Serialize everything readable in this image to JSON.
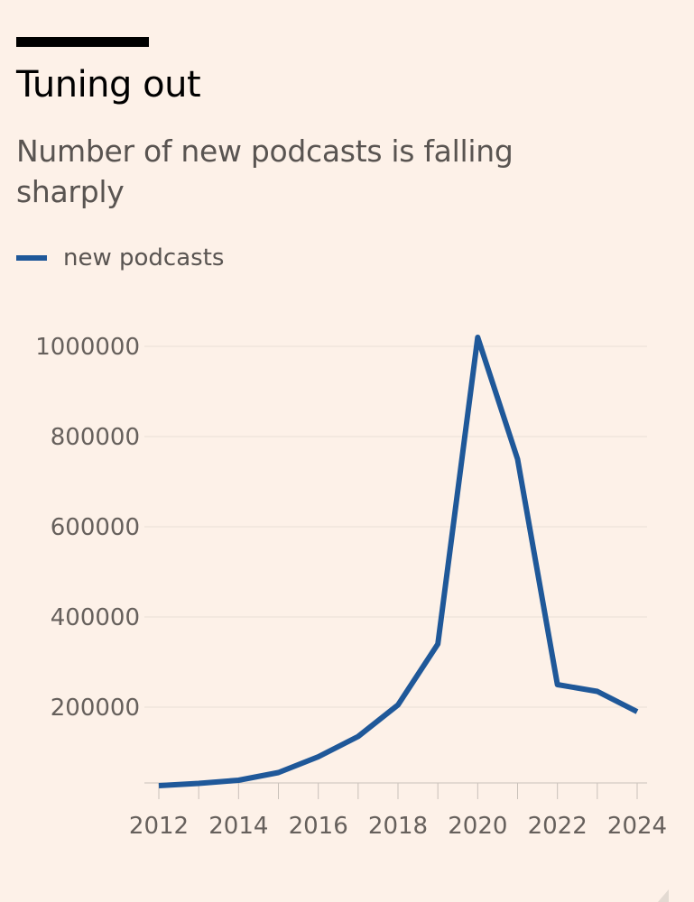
{
  "header": {
    "title": "Tuning out",
    "subtitle": "Number of new podcasts is falling sharply"
  },
  "legend": {
    "label": "new podcasts"
  },
  "colors": {
    "background": "#FDF1E8",
    "series": "#1F5899",
    "gridline": "#E9DFD6",
    "tick_text": "#66605C"
  },
  "chart_data": {
    "type": "line",
    "title": "Tuning out",
    "subtitle": "Number of new podcasts is falling sharply",
    "xlabel": "",
    "ylabel": "",
    "x": [
      2012,
      2013,
      2014,
      2015,
      2016,
      2017,
      2018,
      2019,
      2020,
      2021,
      2022,
      2023,
      2024
    ],
    "series": [
      {
        "name": "new podcasts",
        "values": [
          26000,
          31000,
          38000,
          55000,
          90000,
          135000,
          205000,
          340000,
          1020000,
          750000,
          250000,
          235000,
          190000
        ]
      }
    ],
    "ylim": [
      0,
      1000000
    ],
    "yticks": [
      200000,
      400000,
      600000,
      800000,
      1000000
    ],
    "xticks": [
      2012,
      2014,
      2016,
      2018,
      2020,
      2022,
      2024
    ],
    "grid": true,
    "legend_position": "top-left"
  }
}
